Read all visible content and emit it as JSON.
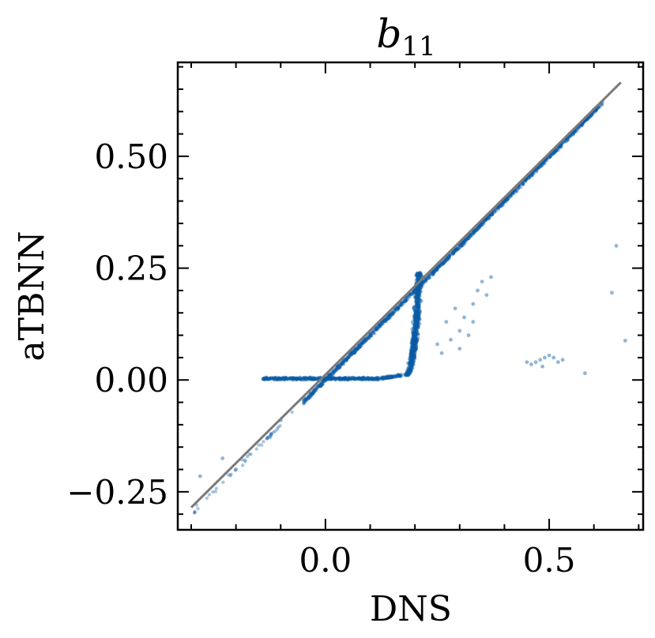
{
  "chart_data": {
    "type": "scatter",
    "title": "b",
    "title_subscript": "11",
    "xlabel": "DNS",
    "ylabel": "aTBNN",
    "xlim": [
      -0.33,
      0.71
    ],
    "ylim": [
      -0.335,
      0.71
    ],
    "x_ticks": [
      0.0,
      0.5
    ],
    "x_tick_labels": [
      "0.0",
      "0.5"
    ],
    "y_ticks": [
      -0.25,
      0.0,
      0.25,
      0.5
    ],
    "y_tick_labels": [
      "−0.25",
      "0.00",
      "0.25",
      "0.50"
    ],
    "grid": false,
    "legend": "none",
    "colors": {
      "points": "#0c5da5",
      "reference_line": "#7a7a7a",
      "axes": "#000000"
    },
    "reference_line": {
      "x": [
        -0.3,
        0.66
      ],
      "y": [
        -0.285,
        0.665
      ]
    },
    "regions": [
      {
        "name": "diagonal-band",
        "kind": "line",
        "x_range": [
          -0.05,
          0.62
        ],
        "slope": 1.0,
        "intercept": 0.0,
        "spread": 0.008,
        "count": 1400
      },
      {
        "name": "horizontal-branch",
        "kind": "flat",
        "x_range": [
          -0.14,
          0.17
        ],
        "y": 0.003,
        "spread": 0.004,
        "count": 600
      },
      {
        "name": "steep-branch",
        "kind": "curve",
        "x_range": [
          0.16,
          0.25
        ],
        "y_range": [
          0.01,
          0.24
        ],
        "spread": 0.01,
        "count": 900
      },
      {
        "name": "lower-tail",
        "kind": "line",
        "x_range": [
          -0.3,
          -0.05
        ],
        "slope": 1.0,
        "intercept": 0.0,
        "spread": 0.01,
        "count": 40
      }
    ],
    "outliers": [
      {
        "x": -0.28,
        "y": -0.215
      },
      {
        "x": -0.23,
        "y": -0.175
      },
      {
        "x": -0.2,
        "y": -0.2
      },
      {
        "x": -0.13,
        "y": -0.13
      },
      {
        "x": -0.1,
        "y": -0.09
      },
      {
        "x": 0.3,
        "y": 0.11
      },
      {
        "x": 0.32,
        "y": 0.1
      },
      {
        "x": 0.33,
        "y": 0.17
      },
      {
        "x": 0.34,
        "y": 0.2
      },
      {
        "x": 0.35,
        "y": 0.22
      },
      {
        "x": 0.36,
        "y": 0.19
      },
      {
        "x": 0.31,
        "y": 0.14
      },
      {
        "x": 0.29,
        "y": 0.16
      },
      {
        "x": 0.27,
        "y": 0.13
      },
      {
        "x": 0.28,
        "y": 0.09
      },
      {
        "x": 0.25,
        "y": 0.08
      },
      {
        "x": 0.26,
        "y": 0.06
      },
      {
        "x": 0.3,
        "y": 0.07
      },
      {
        "x": 0.37,
        "y": 0.23
      },
      {
        "x": 0.33,
        "y": 0.13
      },
      {
        "x": 0.45,
        "y": 0.04
      },
      {
        "x": 0.46,
        "y": 0.035
      },
      {
        "x": 0.47,
        "y": 0.04
      },
      {
        "x": 0.48,
        "y": 0.045
      },
      {
        "x": 0.49,
        "y": 0.05
      },
      {
        "x": 0.5,
        "y": 0.055
      },
      {
        "x": 0.51,
        "y": 0.05
      },
      {
        "x": 0.52,
        "y": 0.04
      },
      {
        "x": 0.53,
        "y": 0.045
      },
      {
        "x": 0.485,
        "y": 0.03
      },
      {
        "x": 0.58,
        "y": 0.015
      },
      {
        "x": 0.65,
        "y": 0.3
      },
      {
        "x": 0.64,
        "y": 0.195
      },
      {
        "x": 0.67,
        "y": 0.088
      }
    ]
  }
}
